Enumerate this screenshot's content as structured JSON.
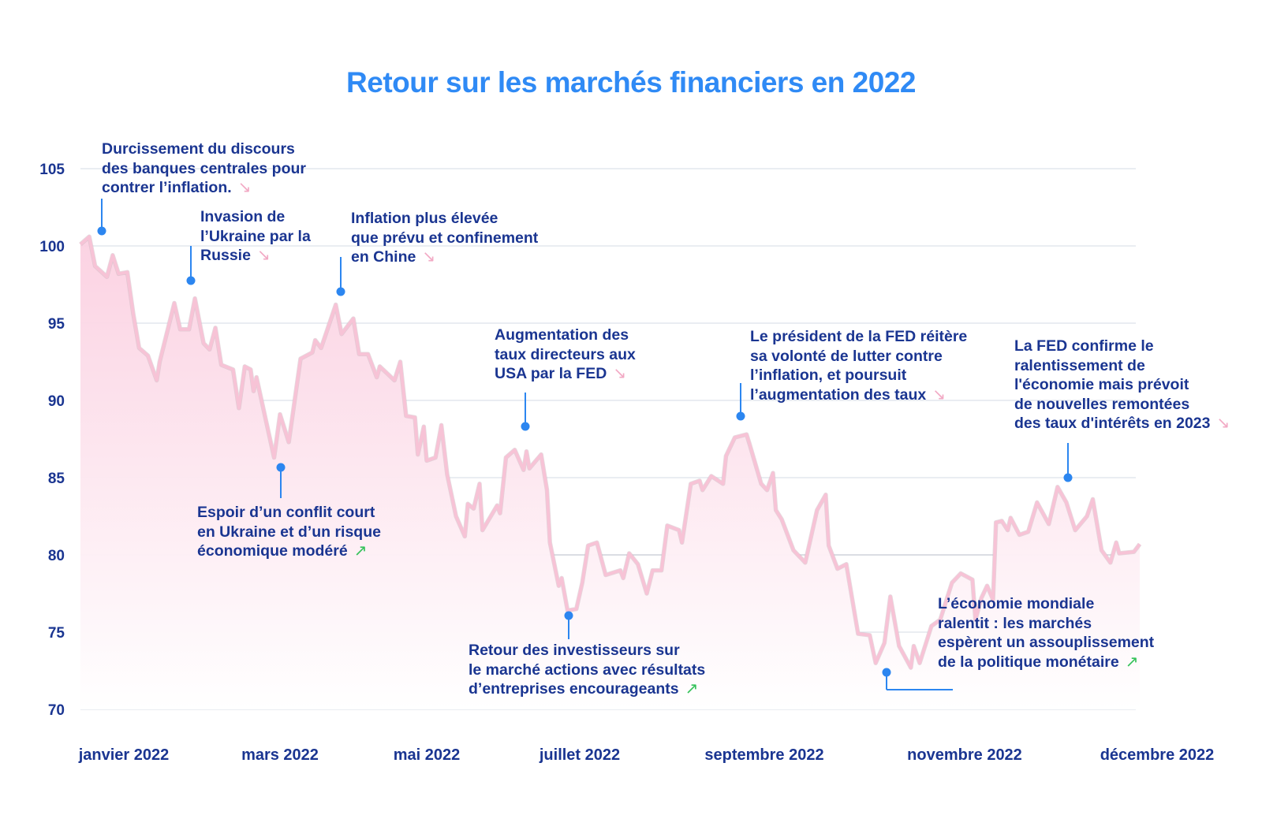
{
  "title": "Retour sur les marchés financiers en 2022",
  "colors": {
    "title": "#2f8af5",
    "text": "#1a3591",
    "line": "#f7c3d6",
    "fill_top": "#fbd3e3",
    "marker": "#2c86f0",
    "arrow_down": "#f2a9c4",
    "arrow_up": "#35c25a",
    "grid": "#e4e7ee"
  },
  "chart_data": {
    "type": "area",
    "title": "Retour sur les marchés financiers en 2022",
    "xlabel": "",
    "ylabel": "",
    "ylim": [
      70,
      105
    ],
    "yticks": [
      105,
      100,
      95,
      90,
      85,
      80,
      75,
      70
    ],
    "xtick_labels": [
      "janvier 2022",
      "mars 2022",
      "mai 2022",
      "juillet 2022",
      "septembre 2022",
      "novembre 2022",
      "décembre 2022"
    ],
    "grid": true,
    "legend": "none",
    "series": [
      {
        "x": [
          "2022-01-03",
          "2022-01-06",
          "2022-01-08",
          "2022-01-12",
          "2022-01-14",
          "2022-01-16",
          "2022-01-19",
          "2022-01-21",
          "2022-01-23",
          "2022-01-26",
          "2022-01-29",
          "2022-01-30",
          "2022-02-04",
          "2022-02-06",
          "2022-02-09",
          "2022-02-11",
          "2022-02-14",
          "2022-02-16",
          "2022-02-18",
          "2022-02-20",
          "2022-02-24",
          "2022-02-26",
          "2022-02-28",
          "2022-03-02",
          "2022-03-03",
          "2022-03-04",
          "2022-03-10",
          "2022-03-12",
          "2022-03-15",
          "2022-03-19",
          "2022-03-23",
          "2022-03-24",
          "2022-03-26",
          "2022-03-31",
          "2022-04-02",
          "2022-04-06",
          "2022-04-08",
          "2022-04-11",
          "2022-04-14",
          "2022-04-15",
          "2022-04-20",
          "2022-04-22",
          "2022-04-24",
          "2022-04-27",
          "2022-04-28",
          "2022-04-30",
          "2022-05-01",
          "2022-05-04",
          "2022-05-06",
          "2022-05-08",
          "2022-05-11",
          "2022-05-14",
          "2022-05-15",
          "2022-05-17",
          "2022-05-19",
          "2022-05-20",
          "2022-05-25",
          "2022-05-26",
          "2022-05-28",
          "2022-05-31",
          "2022-06-03",
          "2022-06-04",
          "2022-06-05",
          "2022-06-09",
          "2022-06-11",
          "2022-06-12",
          "2022-06-15",
          "2022-06-16",
          "2022-06-18",
          "2022-06-21",
          "2022-06-23",
          "2022-06-25",
          "2022-06-28",
          "2022-07-01",
          "2022-07-06",
          "2022-07-07",
          "2022-07-09",
          "2022-07-12",
          "2022-07-15",
          "2022-07-17",
          "2022-07-20",
          "2022-07-22",
          "2022-07-26",
          "2022-07-27",
          "2022-07-30",
          "2022-08-02",
          "2022-08-03",
          "2022-08-06",
          "2022-08-10",
          "2022-08-11",
          "2022-08-14",
          "2022-08-18",
          "2022-08-19",
          "2022-08-23",
          "2022-08-25",
          "2022-08-27",
          "2022-08-28",
          "2022-08-30",
          "2022-09-03",
          "2022-09-07",
          "2022-09-11",
          "2022-09-14",
          "2022-09-15",
          "2022-09-18",
          "2022-09-21",
          "2022-09-25",
          "2022-09-29",
          "2022-10-01",
          "2022-10-04",
          "2022-10-06",
          "2022-10-09",
          "2022-10-13",
          "2022-10-14",
          "2022-10-16",
          "2022-10-20",
          "2022-10-23",
          "2022-10-27",
          "2022-10-30",
          "2022-11-03",
          "2022-11-04",
          "2022-11-06",
          "2022-11-08",
          "2022-11-10",
          "2022-11-11",
          "2022-11-13",
          "2022-11-15",
          "2022-11-16",
          "2022-11-19",
          "2022-11-22",
          "2022-11-25",
          "2022-11-29",
          "2022-12-02",
          "2022-12-05",
          "2022-12-08",
          "2022-12-12",
          "2022-12-14",
          "2022-12-17",
          "2022-12-20",
          "2022-12-22",
          "2022-12-23",
          "2022-12-28",
          "2022-12-30"
        ],
        "y": [
          100.1,
          100.6,
          98.7,
          98.0,
          99.4,
          98.2,
          98.3,
          95.6,
          93.4,
          92.9,
          91.3,
          92.5,
          96.3,
          94.6,
          94.6,
          96.6,
          93.7,
          93.3,
          94.7,
          92.3,
          92.0,
          89.5,
          92.2,
          92.0,
          90.6,
          91.5,
          86.3,
          89.1,
          87.3,
          92.7,
          93.1,
          93.9,
          93.4,
          96.2,
          94.3,
          95.3,
          93.0,
          93.0,
          91.5,
          92.2,
          91.3,
          92.5,
          89.0,
          88.9,
          86.5,
          88.3,
          86.1,
          86.3,
          88.4,
          85.2,
          82.5,
          81.2,
          83.3,
          83.0,
          84.6,
          81.6,
          83.2,
          82.7,
          86.3,
          86.8,
          85.5,
          86.7,
          85.6,
          86.5,
          84.2,
          80.8,
          78.0,
          78.5,
          76.4,
          76.5,
          78.2,
          80.6,
          80.8,
          78.7,
          79.0,
          78.5,
          80.1,
          79.4,
          77.5,
          79.0,
          79.0,
          81.9,
          81.6,
          80.8,
          84.6,
          84.8,
          84.2,
          85.1,
          84.6,
          86.4,
          87.6,
          87.8,
          87.2,
          84.6,
          84.2,
          85.3,
          82.9,
          82.3,
          80.3,
          79.5,
          82.9,
          83.9,
          80.6,
          79.1,
          79.4,
          74.9,
          74.8,
          73.0,
          74.3,
          77.3,
          74.1,
          72.7,
          74.1,
          73.0,
          75.4,
          75.8,
          78.2,
          78.8,
          78.4,
          75.8,
          77.2,
          78.0,
          77.1,
          82.1,
          82.2,
          81.6,
          82.4,
          81.3,
          81.5,
          83.4,
          82.0,
          84.4,
          83.4,
          81.6,
          82.5,
          83.6,
          80.3,
          79.5,
          80.8,
          80.1,
          80.2,
          80.7
        ]
      }
    ]
  },
  "annotations": [
    {
      "lines": [
        "Durcissement du discours",
        "des banques centrales pour",
        "contrer l’inflation."
      ],
      "arrow": "down",
      "arrow_glyph": "↘"
    },
    {
      "lines": [
        "Invasion de",
        "l’Ukraine par la",
        "Russie"
      ],
      "arrow": "down",
      "arrow_glyph": "↘"
    },
    {
      "lines": [
        "Inflation plus élevée",
        "que prévu et confinement",
        "en Chine"
      ],
      "arrow": "down",
      "arrow_glyph": "↘"
    },
    {
      "lines": [
        "Espoir d’un conflit court",
        "en Ukraine et d’un risque",
        "économique modéré"
      ],
      "arrow": "up",
      "arrow_glyph": "↗"
    },
    {
      "lines": [
        "Augmentation des",
        "taux directeurs aux",
        "USA par la FED"
      ],
      "arrow": "down",
      "arrow_glyph": "↘"
    },
    {
      "lines": [
        "Retour des investisseurs sur",
        "le marché actions avec résultats",
        "d’entreprises encourageants"
      ],
      "arrow": "up",
      "arrow_glyph": "↗"
    },
    {
      "lines": [
        "Le président de la FED réitère",
        "sa volonté de lutter contre",
        "l’inflation, et poursuit",
        "l’augmentation des taux"
      ],
      "arrow": "down",
      "arrow_glyph": "↘"
    },
    {
      "lines": [
        "La FED confirme le",
        "ralentissement de",
        "l'économie mais prévoit",
        "de nouvelles remontées",
        "des taux d'intérêts en 2023"
      ],
      "arrow": "down",
      "arrow_glyph": "↘"
    },
    {
      "lines": [
        "L’économie mondiale",
        "ralentit : les marchés",
        "espèrent un assouplissement",
        "de la politique monétaire"
      ],
      "arrow": "up",
      "arrow_glyph": "↗"
    }
  ]
}
